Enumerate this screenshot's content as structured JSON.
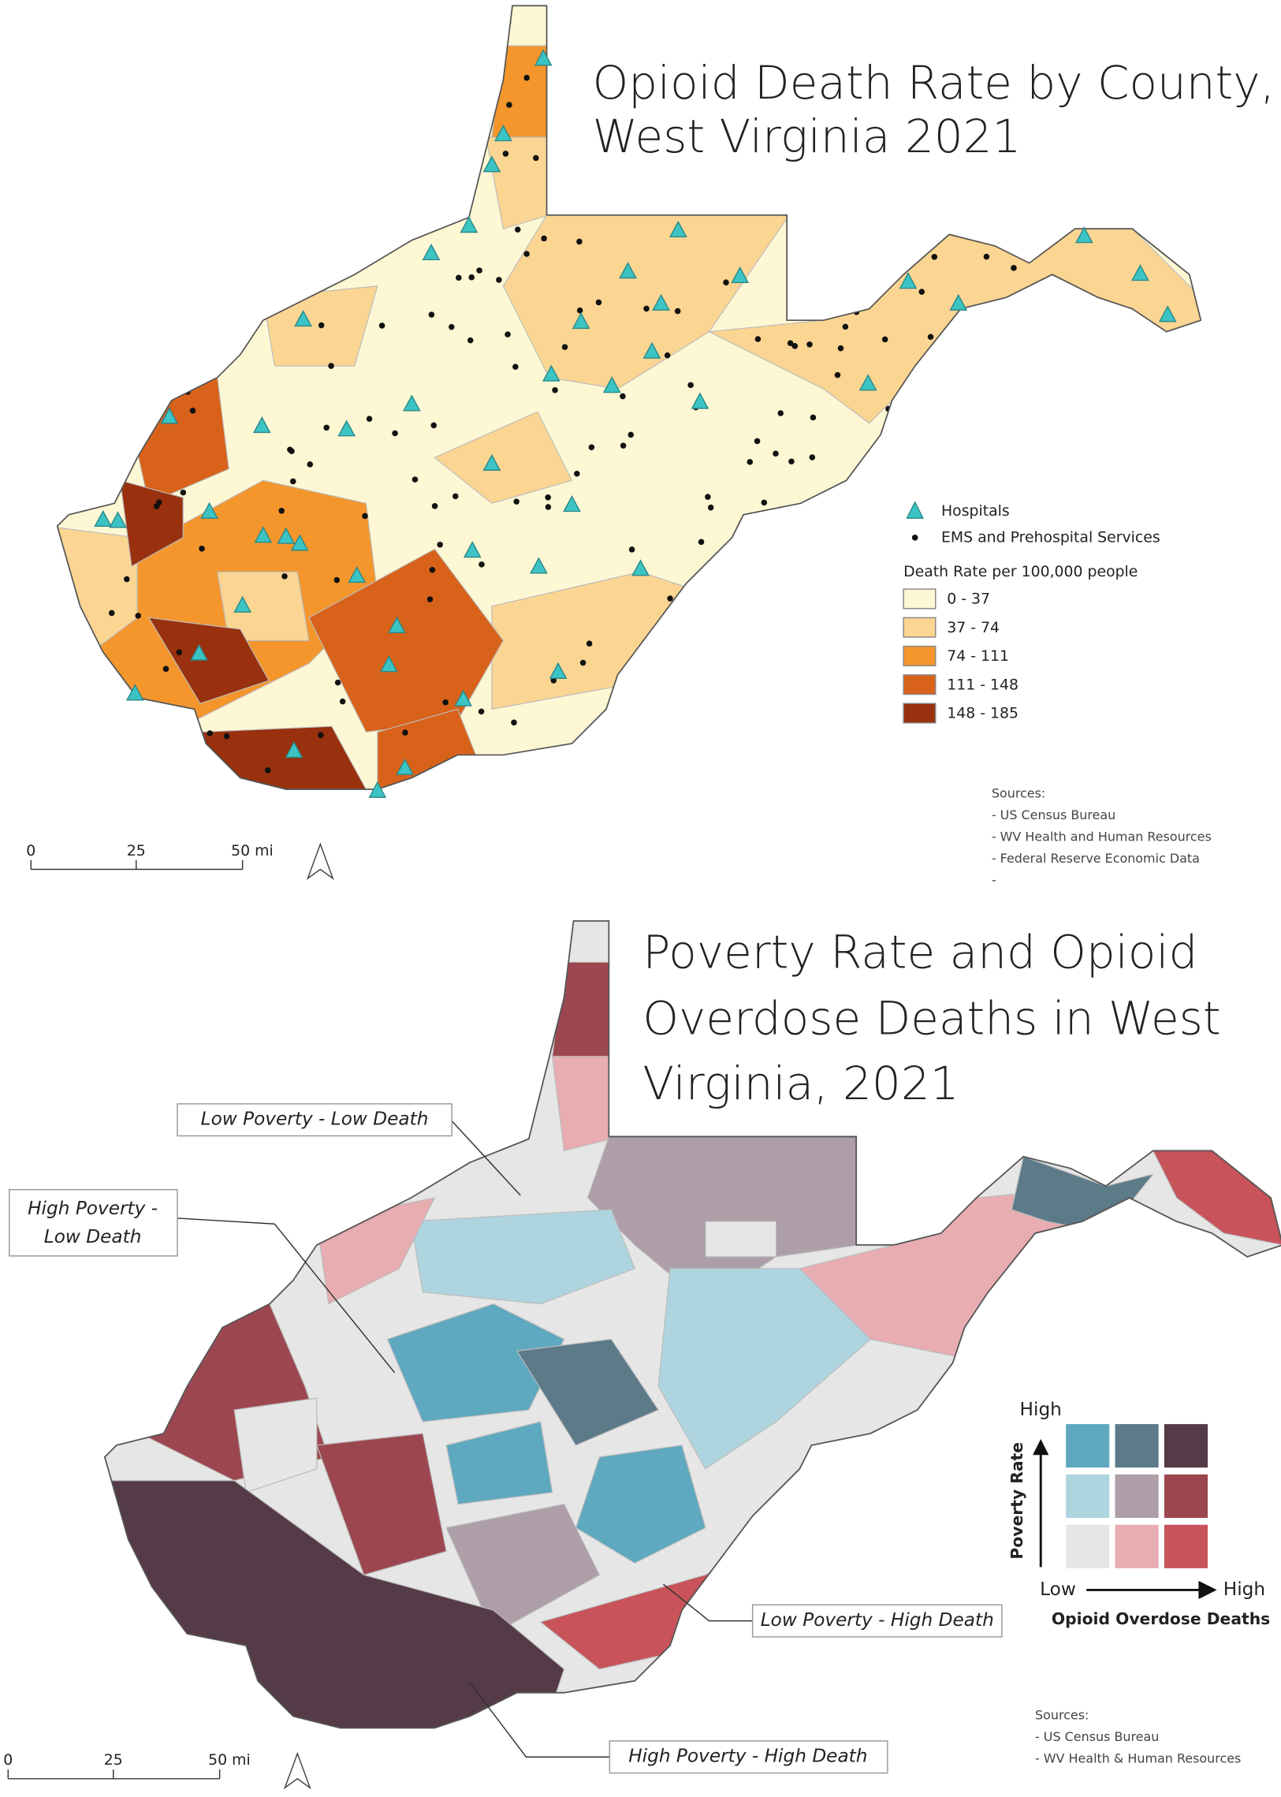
{
  "map1": {
    "title": [
      "Opioid Death Rate by County,",
      "West Virginia 2021"
    ],
    "legend": {
      "symbols": [
        {
          "label": "Hospitals",
          "color": "#3cc4c4"
        },
        {
          "label": "EMS and Prehospital Services",
          "color": "#111111"
        }
      ],
      "heading": "Death Rate per 100,000 people",
      "classes": [
        {
          "label": "0 - 37",
          "color": "#fdf7d4"
        },
        {
          "label": "37 - 74",
          "color": "#fbd592"
        },
        {
          "label": "74 - 111",
          "color": "#f4962c"
        },
        {
          "label": "111 - 148",
          "color": "#d9621a"
        },
        {
          "label": "148 - 185",
          "color": "#99300e"
        }
      ]
    },
    "scale": [
      "0",
      "25",
      "50 mi"
    ],
    "sources": {
      "heading": "Sources:",
      "items": [
        "- US Census Bureau",
        "- WV Health and Human Resources",
        "- Federal Reserve Economic Data",
        "-"
      ]
    }
  },
  "map2": {
    "title": [
      "Poverty Rate and Opioid",
      "Overdose Deaths in West",
      "Virginia, 2021"
    ],
    "annotations": {
      "low_low": "Low Poverty - Low Death",
      "high_low": [
        "High Poverty -",
        "Low Death"
      ],
      "low_high": "Low Poverty - High Death",
      "high_high": "High Poverty - High Death"
    },
    "legend": {
      "y_high": "High",
      "y_label": "Poverty Rate",
      "x_low": "Low",
      "x_high": "High",
      "x_label": "Opioid Overdose Deaths",
      "grid": [
        [
          "#5ea9bf",
          "#5d7a89",
          "#553a47"
        ],
        [
          "#aed5df",
          "#ad9ea8",
          "#9c4750"
        ],
        [
          "#e6e6e6",
          "#e8adb1",
          "#c8535a"
        ]
      ]
    },
    "scale": [
      "0",
      "25",
      "50 mi"
    ],
    "sources": {
      "heading": "Sources:",
      "items": [
        "- US Census Bureau",
        "- WV Health & Human Resources"
      ]
    }
  }
}
